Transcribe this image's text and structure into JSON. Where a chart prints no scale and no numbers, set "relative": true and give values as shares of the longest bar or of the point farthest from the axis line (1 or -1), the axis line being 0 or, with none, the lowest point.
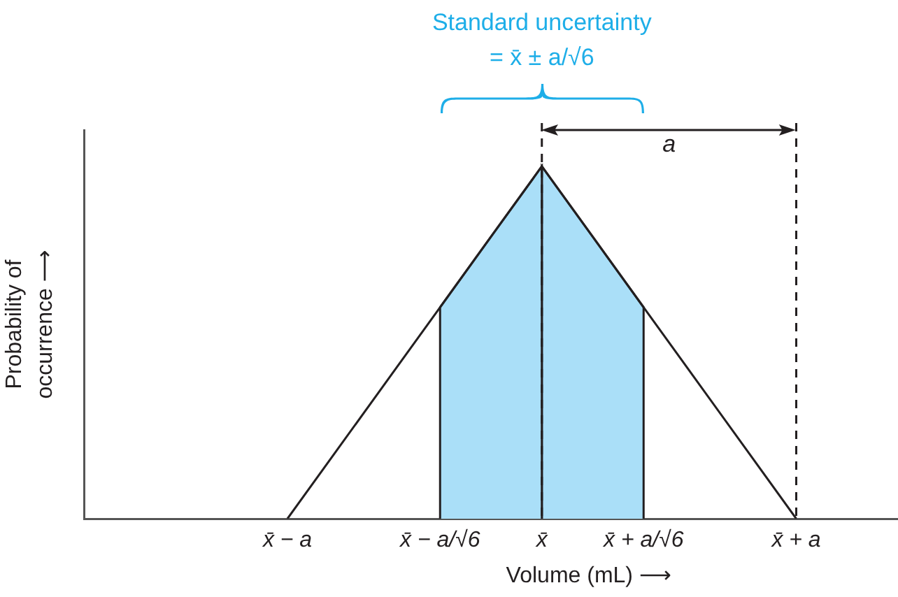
{
  "chart_data": {
    "type": "line",
    "xlabel": "Volume (mL) ⟶",
    "ylabel": "Probability of\noccurrence ⟶",
    "relative": true,
    "categories": [
      null,
      null,
      null,
      null,
      "x̄ − a",
      null,
      null,
      "x̄ − a/√6",
      null,
      "x̄",
      null,
      "x̄ + a/√6",
      null,
      null,
      "x̄ + a",
      null,
      null
    ],
    "series": [
      {
        "type": "area",
        "color": "#aadff8",
        "values": [
          null,
          null,
          null,
          null,
          null,
          null,
          null,
          0.6,
          0.8,
          1,
          null,
          null,
          null,
          null,
          null,
          null,
          null
        ]
      },
      {
        "type": "area",
        "color": "#aadff8",
        "values": [
          null,
          null,
          null,
          null,
          null,
          null,
          null,
          null,
          null,
          1,
          0.8,
          0.6,
          null,
          null,
          null,
          null,
          null
        ]
      },
      {
        "color": "#231f20",
        "values": [
          null,
          null,
          null,
          null,
          0,
          0.2,
          0.4,
          0.6,
          0.8,
          1,
          0.8,
          0.6,
          0.4,
          0.2,
          0,
          null,
          null
        ]
      }
    ],
    "ref_lines": [
      {
        "axis": "x",
        "value": "x̄",
        "color": "#231f20",
        "line_style": "dashed"
      },
      {
        "axis": "x",
        "value": "x̄ + a",
        "color": "#231f20",
        "line_style": "dashed"
      }
    ],
    "annotations": [
      "Standard uncertainty\n= x̄ ± a/√6",
      "a"
    ],
    "tick_labels": "x",
    "grid": false,
    "legend": false,
    "marker": "none"
  }
}
